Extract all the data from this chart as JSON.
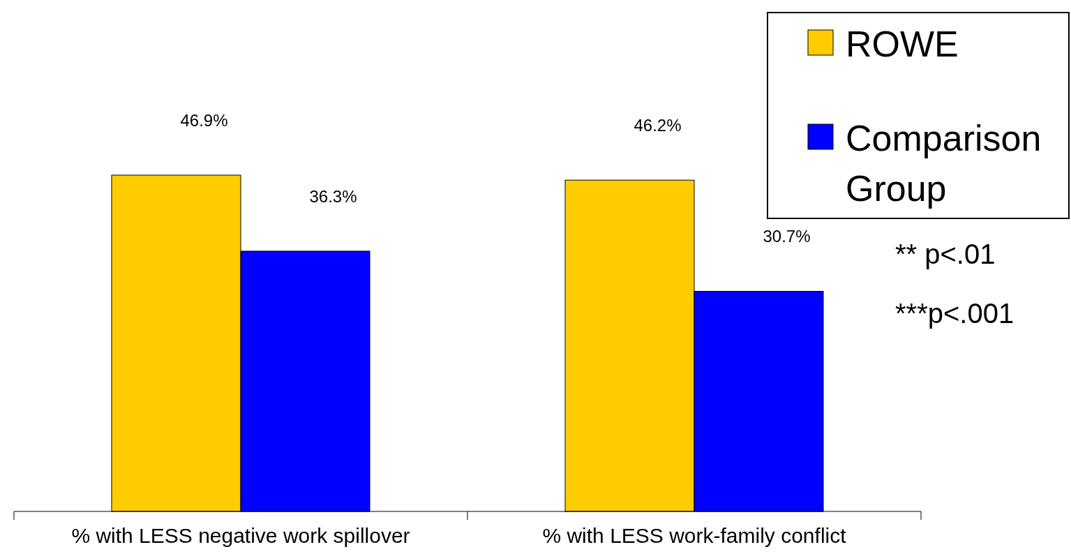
{
  "chart_data": {
    "type": "bar",
    "categories": [
      "% with LESS negative work spillover",
      "% with LESS work-family conflict"
    ],
    "series": [
      {
        "name": "ROWE",
        "color": "#ffcc00",
        "values": [
          46.9,
          46.2
        ],
        "value_labels": [
          "46.9%",
          "46.2%"
        ]
      },
      {
        "name": "Comparison Group",
        "color": "#0000ff",
        "values": [
          36.3,
          30.7
        ],
        "value_labels": [
          "36.3%",
          "30.7%"
        ]
      }
    ],
    "legend": "top right",
    "annotations": [
      "** p<.01",
      "***p<.001"
    ]
  }
}
